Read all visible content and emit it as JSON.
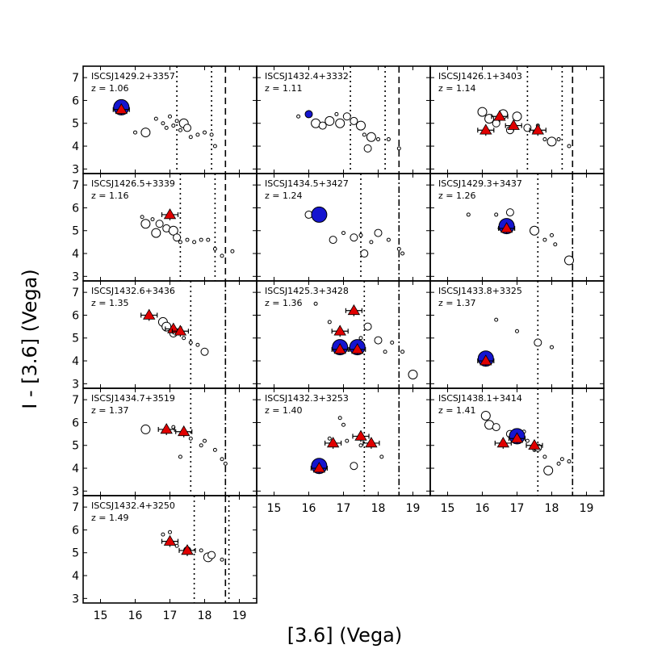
{
  "chart_data": {
    "type": "scatter",
    "xlabel": "[3.6] (Vega)",
    "ylabel": "I - [3.6] (Vega)",
    "xlim": [
      14.5,
      19.5
    ],
    "ylim": [
      2.8,
      7.5
    ],
    "xticks": [
      15,
      16,
      17,
      18,
      19
    ],
    "yticks": [
      3,
      4,
      5,
      6,
      7
    ],
    "panels": [
      {
        "name": "ISCSJ1429.2+3357",
        "z": "z = 1.06",
        "dot": 17.2,
        "dash": 18.6,
        "dot2": 18.2,
        "members": [
          [
            15.6,
            5.7
          ]
        ],
        "tris": [
          [
            15.6,
            5.6,
            0,
            0
          ]
        ],
        "field": [
          [
            16.3,
            4.6,
            8
          ],
          [
            16.6,
            5.2,
            3
          ],
          [
            16.8,
            5.0,
            3
          ],
          [
            16.9,
            4.8,
            3
          ],
          [
            17.0,
            5.3,
            3
          ],
          [
            17.1,
            4.9,
            3
          ],
          [
            17.2,
            5.1,
            3
          ],
          [
            17.3,
            4.7,
            3
          ],
          [
            17.4,
            5.0,
            6
          ],
          [
            17.5,
            4.8,
            5
          ],
          [
            17.6,
            4.4,
            3
          ],
          [
            17.8,
            4.5,
            3
          ],
          [
            18.0,
            4.6,
            3
          ],
          [
            18.2,
            4.5,
            3
          ],
          [
            18.3,
            4.0,
            3
          ],
          [
            16.0,
            4.6,
            3
          ]
        ]
      },
      {
        "name": "ISCSJ1432.4+3332",
        "z": "z = 1.11",
        "dot": 17.2,
        "dash": 18.6,
        "dot2": 18.2,
        "members": [
          [
            16.0,
            5.4,
            0.5
          ]
        ],
        "tris": [],
        "field": [
          [
            16.2,
            5.0,
            6
          ],
          [
            16.4,
            4.9,
            5
          ],
          [
            16.6,
            5.1,
            6
          ],
          [
            16.9,
            5.0,
            6
          ],
          [
            17.1,
            5.3,
            5
          ],
          [
            17.3,
            5.1,
            5
          ],
          [
            17.5,
            4.9,
            6
          ],
          [
            17.6,
            4.5,
            3
          ],
          [
            17.8,
            4.4,
            6
          ],
          [
            18.0,
            4.3,
            3
          ],
          [
            17.7,
            3.9,
            5
          ],
          [
            18.3,
            4.3,
            3
          ],
          [
            18.6,
            3.9,
            3
          ],
          [
            16.8,
            5.4,
            3
          ],
          [
            15.7,
            5.3,
            3
          ]
        ]
      },
      {
        "name": "ISCSJ1426.1+3403",
        "z": "z = 1.14",
        "dot": 17.3,
        "dash": 18.6,
        "dot2": 18.3,
        "members": [],
        "tris": [
          [
            16.1,
            4.7,
            0,
            0
          ],
          [
            16.5,
            5.3,
            0,
            0
          ],
          [
            16.9,
            4.9,
            0,
            0
          ],
          [
            17.6,
            4.7,
            0,
            0
          ]
        ],
        "field": [
          [
            16.0,
            5.5,
            6
          ],
          [
            16.2,
            5.2,
            6
          ],
          [
            16.4,
            5.0,
            5
          ],
          [
            16.6,
            5.4,
            6
          ],
          [
            16.8,
            4.7,
            5
          ],
          [
            17.0,
            5.3,
            6
          ],
          [
            17.3,
            4.8,
            5
          ],
          [
            17.5,
            4.6,
            4
          ],
          [
            17.8,
            4.3,
            3
          ],
          [
            18.0,
            4.2,
            6
          ],
          [
            18.2,
            4.3,
            3
          ],
          [
            18.5,
            4.0,
            3
          ],
          [
            17.6,
            4.9,
            3
          ]
        ]
      },
      {
        "name": "ISCSJ1426.5+3339",
        "z": "z = 1.16",
        "dot": 17.3,
        "dash": 18.6,
        "dot2": 18.3,
        "members": [],
        "tris": [
          [
            17.0,
            5.7,
            0,
            0
          ]
        ],
        "field": [
          [
            16.3,
            5.3,
            6
          ],
          [
            16.5,
            5.5,
            4
          ],
          [
            16.6,
            4.9,
            6
          ],
          [
            16.7,
            5.3,
            5
          ],
          [
            16.9,
            5.1,
            5
          ],
          [
            17.1,
            5.0,
            6
          ],
          [
            17.2,
            4.7,
            5
          ],
          [
            17.3,
            4.5,
            3
          ],
          [
            17.5,
            4.6,
            3
          ],
          [
            17.7,
            4.5,
            3
          ],
          [
            17.9,
            4.6,
            3
          ],
          [
            18.1,
            4.6,
            3
          ],
          [
            18.3,
            4.2,
            3
          ],
          [
            18.5,
            3.9,
            3
          ],
          [
            18.8,
            4.1,
            3
          ],
          [
            16.2,
            5.6,
            3
          ]
        ]
      },
      {
        "name": "ISCSJ1434.5+3427",
        "z": "z = 1.24",
        "dot": 17.5,
        "dash": 18.6,
        "dot2": null,
        "members": [
          [
            16.3,
            5.7
          ]
        ],
        "tris": [],
        "field": [
          [
            16.0,
            5.7,
            5
          ],
          [
            16.7,
            4.6,
            5
          ],
          [
            17.0,
            4.9,
            3
          ],
          [
            17.3,
            4.7,
            5
          ],
          [
            17.5,
            4.8,
            3
          ],
          [
            17.6,
            4.0,
            5
          ],
          [
            17.8,
            4.5,
            3
          ],
          [
            18.0,
            4.9,
            5
          ],
          [
            18.3,
            4.6,
            3
          ],
          [
            18.6,
            4.2,
            3
          ],
          [
            18.7,
            4.0,
            3
          ]
        ]
      },
      {
        "name": "ISCSJ1429.3+3437",
        "z": "z = 1.26",
        "dot": 17.6,
        "dash": 18.6,
        "dot2": null,
        "members": [
          [
            16.7,
            5.2
          ]
        ],
        "tris": [
          [
            16.7,
            5.1,
            0,
            0
          ]
        ],
        "field": [
          [
            15.6,
            5.7,
            3
          ],
          [
            16.4,
            5.7,
            3
          ],
          [
            16.5,
            5.1,
            3
          ],
          [
            16.8,
            5.8,
            5
          ],
          [
            17.5,
            5.0,
            6
          ],
          [
            17.8,
            4.6,
            3
          ],
          [
            18.0,
            4.8,
            3
          ],
          [
            18.1,
            4.4,
            3
          ],
          [
            18.5,
            3.7,
            6
          ]
        ]
      },
      {
        "name": "ISCSJ1432.6+3436",
        "z": "z = 1.35",
        "dot": 17.6,
        "dash": 18.6,
        "dot2": null,
        "members": [],
        "tris": [
          [
            16.4,
            6.0,
            0,
            0
          ],
          [
            17.1,
            5.4,
            0,
            0
          ],
          [
            17.3,
            5.3,
            0,
            0
          ]
        ],
        "field": [
          [
            16.8,
            5.7,
            6
          ],
          [
            16.9,
            5.5,
            6
          ],
          [
            17.1,
            5.2,
            5
          ],
          [
            17.4,
            5.0,
            3
          ],
          [
            17.6,
            4.8,
            3
          ],
          [
            17.8,
            4.7,
            3
          ],
          [
            18.0,
            4.4,
            5
          ]
        ]
      },
      {
        "name": "ISCSJ1425.3+3428",
        "z": "z = 1.36",
        "dot": 17.6,
        "dash": 18.6,
        "dot2": null,
        "members": [
          [
            16.9,
            4.6
          ],
          [
            17.4,
            4.6
          ]
        ],
        "tris": [
          [
            16.9,
            4.5,
            0,
            0
          ],
          [
            17.4,
            4.5,
            0,
            0
          ],
          [
            17.3,
            6.2,
            0,
            0
          ],
          [
            16.9,
            5.3,
            0,
            0
          ]
        ],
        "field": [
          [
            16.2,
            6.5,
            3
          ],
          [
            16.6,
            5.7,
            3
          ],
          [
            17.7,
            5.5,
            5
          ],
          [
            17.5,
            5.0,
            3
          ],
          [
            18.0,
            4.9,
            5
          ],
          [
            18.2,
            4.4,
            3
          ],
          [
            18.4,
            4.8,
            3
          ],
          [
            18.7,
            4.4,
            3
          ],
          [
            19.0,
            3.4,
            6
          ]
        ]
      },
      {
        "name": "ISCSJ1433.8+3325",
        "z": "z = 1.37",
        "dot": 17.6,
        "dash": 18.6,
        "dot2": null,
        "members": [
          [
            16.1,
            4.1
          ]
        ],
        "tris": [
          [
            16.1,
            4.0,
            0,
            0
          ]
        ],
        "field": [
          [
            16.4,
            5.8,
            3
          ],
          [
            17.0,
            5.3,
            3
          ],
          [
            17.6,
            4.8,
            5
          ],
          [
            18.0,
            4.6,
            3
          ]
        ]
      },
      {
        "name": "ISCSJ1434.7+3519",
        "z": "z = 1.37",
        "dot": 17.6,
        "dash": 18.6,
        "dot2": null,
        "members": [],
        "tris": [
          [
            16.9,
            5.7,
            0,
            0
          ],
          [
            17.4,
            5.6,
            0,
            0
          ]
        ],
        "field": [
          [
            16.3,
            5.7,
            6
          ],
          [
            17.1,
            5.8,
            3
          ],
          [
            17.3,
            4.5,
            3
          ],
          [
            17.6,
            5.3,
            3
          ],
          [
            17.9,
            5.0,
            3
          ],
          [
            18.0,
            5.2,
            3
          ],
          [
            18.3,
            4.8,
            3
          ],
          [
            18.5,
            4.4,
            3
          ],
          [
            18.6,
            4.2,
            3
          ]
        ]
      },
      {
        "name": "ISCSJ1432.3+3253",
        "z": "z = 1.40",
        "dot": 17.6,
        "dash": 18.6,
        "dot2": null,
        "members": [
          [
            16.3,
            4.1
          ]
        ],
        "tris": [
          [
            16.3,
            4.0,
            0,
            0
          ],
          [
            16.7,
            5.1,
            0,
            0
          ],
          [
            17.5,
            5.4,
            0,
            0
          ],
          [
            17.8,
            5.1,
            0,
            0
          ]
        ],
        "field": [
          [
            16.6,
            5.3,
            3
          ],
          [
            16.9,
            6.2,
            3
          ],
          [
            17.0,
            5.9,
            3
          ],
          [
            17.1,
            5.2,
            3
          ],
          [
            17.3,
            4.1,
            5
          ],
          [
            17.5,
            5.0,
            3
          ],
          [
            18.1,
            4.5,
            3
          ]
        ]
      },
      {
        "name": "ISCSJ1438.1+3414",
        "z": "z = 1.41",
        "dot": 17.6,
        "dash": 18.6,
        "dot2": null,
        "members": [
          [
            17.0,
            5.4
          ]
        ],
        "tris": [
          [
            17.0,
            5.3,
            0,
            0
          ],
          [
            16.6,
            5.1,
            0,
            0
          ],
          [
            17.5,
            5.0,
            0,
            0
          ]
        ],
        "field": [
          [
            16.1,
            6.3,
            6
          ],
          [
            16.2,
            5.9,
            6
          ],
          [
            16.4,
            5.8,
            5
          ],
          [
            16.8,
            5.5,
            5
          ],
          [
            17.2,
            5.6,
            3
          ],
          [
            17.3,
            5.2,
            3
          ],
          [
            17.5,
            4.8,
            3
          ],
          [
            17.6,
            4.9,
            5
          ],
          [
            17.8,
            4.5,
            3
          ],
          [
            17.9,
            3.9,
            6
          ],
          [
            18.2,
            4.2,
            3
          ],
          [
            18.3,
            4.4,
            3
          ],
          [
            18.5,
            4.3,
            3
          ]
        ]
      },
      {
        "name": "ISCSJ1432.4+3250",
        "z": "z = 1.49",
        "dot": 17.7,
        "dash": 18.6,
        "dot2": 18.7,
        "members": [
          [
            17.5,
            5.1,
            0.55
          ]
        ],
        "tris": [
          [
            17.0,
            5.5,
            0,
            0
          ],
          [
            17.5,
            5.1,
            0,
            0
          ]
        ],
        "field": [
          [
            16.8,
            5.8,
            3
          ],
          [
            17.0,
            5.9,
            3
          ],
          [
            17.2,
            5.3,
            3
          ],
          [
            17.9,
            5.1,
            3
          ],
          [
            18.1,
            4.8,
            6
          ],
          [
            18.2,
            4.9,
            5
          ],
          [
            18.5,
            4.7,
            3
          ]
        ]
      }
    ]
  }
}
